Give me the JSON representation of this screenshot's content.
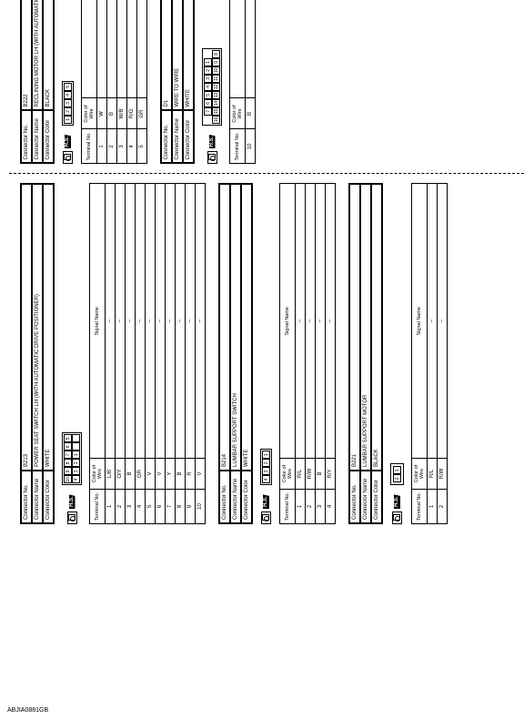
{
  "ref_code": "ABJIA0881GB",
  "connectors": [
    {
      "id": "B213",
      "no": "B213",
      "name": "POWER SEAT SWITCH LH (WITH AUTOMATIC DRIVE POSITIONER)",
      "color": "WHITE",
      "pin_diagram": {
        "rows": [
          [
            10,
            9,
            8,
            7,
            6,
            5
          ],
          [
            4,
            3,
            2,
            1,
            "",
            ""
          ]
        ],
        "note": "two-row"
      },
      "table": {
        "headers": [
          "Terminal No.",
          "Color of Wire",
          "Signal Name"
        ],
        "rows": [
          [
            "1",
            "L/B",
            "–"
          ],
          [
            "2",
            "O/Y",
            "–"
          ],
          [
            "3",
            "B",
            "–"
          ],
          [
            "4",
            "GR",
            "–"
          ],
          [
            "5",
            "V",
            "–"
          ],
          [
            "6",
            "V",
            "–"
          ],
          [
            "7",
            "Y",
            "–"
          ],
          [
            "8",
            "B",
            "–"
          ],
          [
            "9",
            "R",
            "–"
          ],
          [
            "10",
            "V",
            "–"
          ]
        ]
      }
    },
    {
      "id": "B214",
      "no": "B214",
      "name": "LUMBAR SUPPORT SWITCH",
      "color": "WHITE",
      "pin_diagram": {
        "rows": [
          [
            4,
            3,
            2,
            1
          ]
        ]
      },
      "table": {
        "headers": [
          "Terminal No.",
          "Color of Wire",
          "Signal Name"
        ],
        "rows": [
          [
            "1",
            "R/L",
            "–"
          ],
          [
            "2",
            "R/W",
            "–"
          ],
          [
            "3",
            "B",
            "–"
          ],
          [
            "4",
            "R/Y",
            "–"
          ]
        ]
      }
    },
    {
      "id": "B221",
      "no": "B221",
      "name": "LUMBAR SUPPORT MOTOR",
      "color": "BLACK",
      "pin_diagram": {
        "rows": [
          [
            2,
            1
          ]
        ],
        "note": "shaped"
      },
      "table": {
        "headers": [
          "Terminal No.",
          "Color of Wire",
          "Signal Name"
        ],
        "rows": [
          [
            "1",
            "R/L",
            "–"
          ],
          [
            "2",
            "R/W",
            "–"
          ]
        ]
      }
    },
    {
      "id": "B222",
      "no": "B222",
      "name": "RECLINING MOTOR LH (WITH AUTOMATIC DRIVE POSITIONER)",
      "color": "BLACK",
      "pin_diagram": {
        "rows": [
          [
            1,
            2,
            3,
            4,
            5
          ]
        ]
      },
      "table": {
        "headers": [
          "Terminal No.",
          "Color of Wire",
          "Signal Name"
        ],
        "rows": [
          [
            "1",
            "W",
            "–"
          ],
          [
            "2",
            "B",
            "–"
          ],
          [
            "3",
            "W/B",
            "–"
          ],
          [
            "4",
            "R/G",
            "–"
          ],
          [
            "5",
            "GR",
            "–"
          ]
        ]
      }
    },
    {
      "id": "D1",
      "no": "D1",
      "name": "WIRE TO WIRE",
      "color": "WHITE",
      "pin_diagram": {
        "rows": [
          [
            7,
            6,
            5,
            4,
            3,
            2,
            1
          ],
          [
            16,
            15,
            14,
            13,
            12,
            11,
            10,
            9,
            8
          ]
        ]
      },
      "table": {
        "headers": [
          "Terminal No.",
          "Color of Wire",
          "Signal Name"
        ],
        "rows": [
          [
            "10",
            "B",
            "–"
          ]
        ]
      }
    }
  ],
  "labels": {
    "conn_no": "Connector No.",
    "conn_name": "Connector Name",
    "conn_color": "Connector Color",
    "hs": "H.S."
  },
  "colors": {
    "border": "#000000",
    "bg": "#ffffff",
    "hs_bg": "#000000",
    "hs_fg": "#ffffff"
  }
}
